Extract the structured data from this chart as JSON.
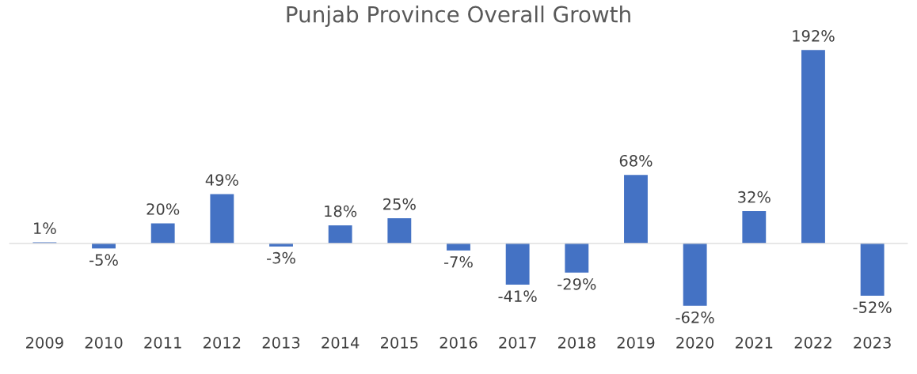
{
  "chart_data": {
    "type": "bar",
    "title": "Punjab Province Overall Growth",
    "categories": [
      "2009",
      "2010",
      "2011",
      "2012",
      "2013",
      "2014",
      "2015",
      "2016",
      "2017",
      "2018",
      "2019",
      "2020",
      "2021",
      "2022",
      "2023"
    ],
    "values": [
      1,
      -5,
      20,
      49,
      -3,
      18,
      25,
      -7,
      -41,
      -29,
      68,
      -62,
      32,
      192,
      -52
    ],
    "value_labels": [
      "1%",
      "-5%",
      "20%",
      "49%",
      "-3%",
      "18%",
      "25%",
      "-7%",
      "-41%",
      "-29%",
      "68%",
      "-62%",
      "32%",
      "192%",
      "-52%"
    ],
    "color": "#4472c4",
    "grid": false,
    "legend": false
  }
}
